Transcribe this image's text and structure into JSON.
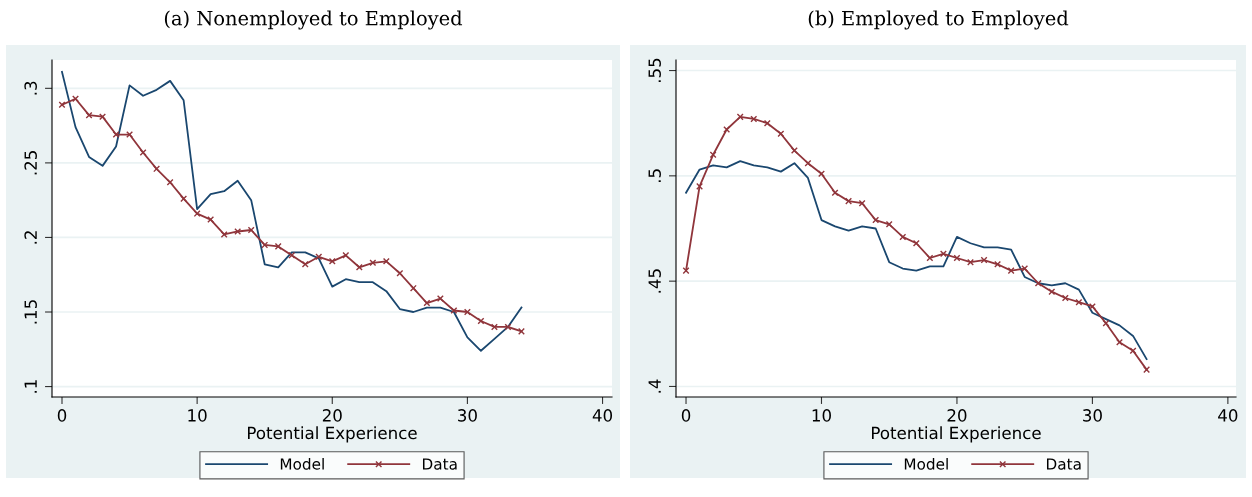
{
  "chart_data": [
    {
      "type": "line",
      "title": "(a) Nonemployed to Employed",
      "xlabel": "Potential Experience",
      "x": [
        0,
        1,
        2,
        3,
        4,
        5,
        6,
        7,
        8,
        9,
        10,
        11,
        12,
        13,
        14,
        15,
        16,
        17,
        18,
        19,
        20,
        21,
        22,
        23,
        24,
        25,
        26,
        27,
        28,
        29,
        30,
        31,
        32,
        33,
        34
      ],
      "series": [
        {
          "name": "Model",
          "color": "#1a476f",
          "marker": "none",
          "values": [
            0.311,
            0.274,
            0.254,
            0.248,
            0.261,
            0.302,
            0.295,
            0.299,
            0.305,
            0.292,
            0.219,
            0.229,
            0.231,
            0.238,
            0.225,
            0.182,
            0.18,
            0.19,
            0.19,
            0.186,
            0.167,
            0.172,
            0.17,
            0.17,
            0.164,
            0.152,
            0.15,
            0.153,
            0.153,
            0.15,
            0.133,
            0.124,
            0.132,
            0.14,
            0.153
          ]
        },
        {
          "name": "Data",
          "color": "#90353b",
          "marker": "cross",
          "values": [
            0.289,
            0.293,
            0.282,
            0.281,
            0.269,
            0.269,
            0.257,
            0.246,
            0.237,
            0.226,
            0.216,
            0.212,
            0.202,
            0.204,
            0.205,
            0.195,
            0.194,
            0.188,
            0.182,
            0.187,
            0.184,
            0.188,
            0.18,
            0.183,
            0.184,
            0.176,
            0.166,
            0.156,
            0.159,
            0.151,
            0.15,
            0.144,
            0.14,
            0.14,
            0.137
          ]
        }
      ],
      "xlim": [
        -0.74,
        40.7
      ],
      "xticks": [
        0,
        10,
        20,
        30,
        40
      ],
      "ylim": [
        0.093,
        0.319
      ],
      "yticks": [
        {
          "value": 0.1,
          "label": ".1"
        },
        {
          "value": 0.15,
          "label": ".15"
        },
        {
          "value": 0.2,
          "label": ".2"
        },
        {
          "value": 0.25,
          "label": ".25"
        },
        {
          "value": 0.3,
          "label": ".3"
        }
      ],
      "grid": "y",
      "legend": "bottom",
      "line_style": "solid"
    },
    {
      "type": "line",
      "title": "(b) Employed to Employed",
      "xlabel": "Potential Experience",
      "x": [
        0,
        1,
        2,
        3,
        4,
        5,
        6,
        7,
        8,
        9,
        10,
        11,
        12,
        13,
        14,
        15,
        16,
        17,
        18,
        19,
        20,
        21,
        22,
        23,
        24,
        25,
        26,
        27,
        28,
        29,
        30,
        31,
        32,
        33,
        34
      ],
      "series": [
        {
          "name": "Model",
          "color": "#1a476f",
          "marker": "none",
          "values": [
            0.492,
            0.503,
            0.505,
            0.504,
            0.507,
            0.505,
            0.504,
            0.502,
            0.506,
            0.499,
            0.479,
            0.476,
            0.474,
            0.476,
            0.475,
            0.459,
            0.456,
            0.455,
            0.457,
            0.457,
            0.471,
            0.468,
            0.466,
            0.466,
            0.465,
            0.452,
            0.449,
            0.448,
            0.449,
            0.446,
            0.435,
            0.432,
            0.429,
            0.424,
            0.413
          ]
        },
        {
          "name": "Data",
          "color": "#90353b",
          "marker": "cross",
          "values": [
            0.455,
            0.495,
            0.51,
            0.522,
            0.528,
            0.527,
            0.525,
            0.52,
            0.512,
            0.506,
            0.501,
            0.492,
            0.488,
            0.487,
            0.479,
            0.477,
            0.471,
            0.468,
            0.461,
            0.463,
            0.461,
            0.459,
            0.46,
            0.458,
            0.455,
            0.456,
            0.449,
            0.445,
            0.442,
            0.44,
            0.438,
            0.43,
            0.421,
            0.417,
            0.408
          ]
        }
      ],
      "xlim": [
        -0.74,
        40.6
      ],
      "xticks": [
        0,
        10,
        20,
        30,
        40
      ],
      "ylim": [
        0.395,
        0.555
      ],
      "yticks": [
        {
          "value": 0.4,
          "label": ".4"
        },
        {
          "value": 0.45,
          "label": ".45"
        },
        {
          "value": 0.5,
          "label": ".5"
        },
        {
          "value": 0.55,
          "label": ".55"
        }
      ],
      "grid": "y",
      "legend": "bottom",
      "line_style": "solid"
    }
  ]
}
